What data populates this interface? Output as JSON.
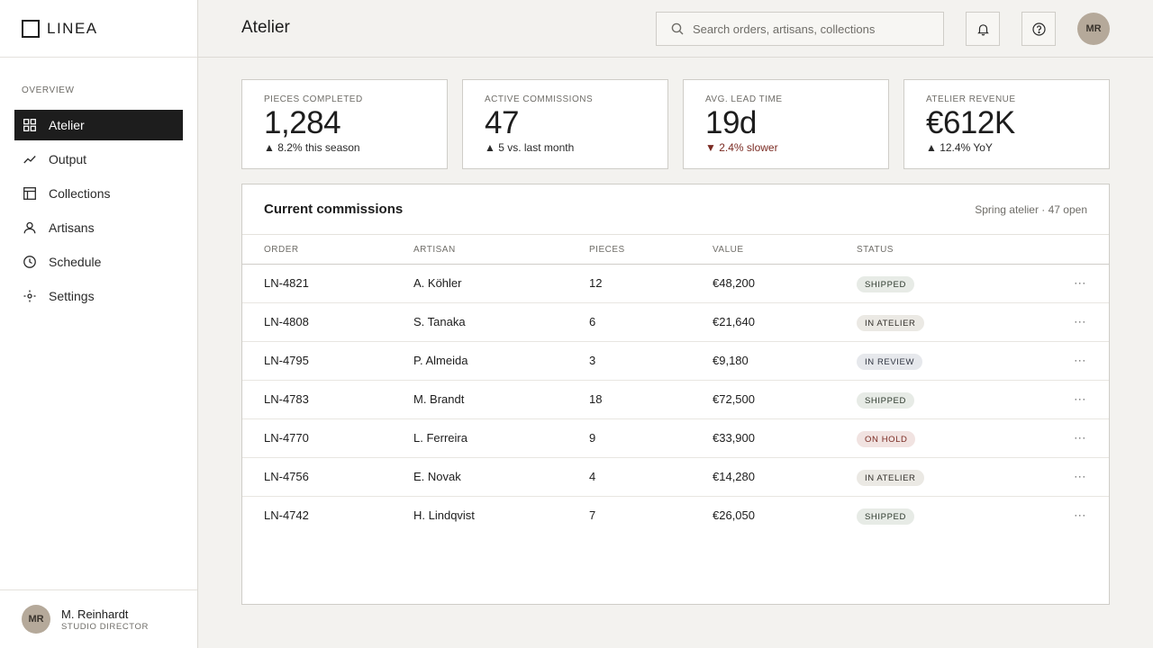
{
  "brand": {
    "name": "LINEA"
  },
  "sidebar": {
    "section": "OVERVIEW",
    "items": [
      {
        "label": "Atelier",
        "icon": "grid-icon",
        "active": true
      },
      {
        "label": "Output",
        "icon": "trend-icon"
      },
      {
        "label": "Collections",
        "icon": "layout-icon"
      },
      {
        "label": "Artisans",
        "icon": "user-icon"
      },
      {
        "label": "Schedule",
        "icon": "clock-icon"
      },
      {
        "label": "Settings",
        "icon": "gear-icon"
      }
    ],
    "user": {
      "initials": "MR",
      "name": "M. Reinhardt",
      "role": "STUDIO DIRECTOR"
    }
  },
  "header": {
    "title": "Atelier",
    "search_placeholder": "Search orders, artisans, collections",
    "avatar_initials": "MR"
  },
  "kpis": [
    {
      "label": "PIECES COMPLETED",
      "value": "1,284",
      "delta": "▲ 8.2% this season",
      "trend": "up"
    },
    {
      "label": "ACTIVE COMMISSIONS",
      "value": "47",
      "delta": "▲ 5 vs. last month",
      "trend": "up"
    },
    {
      "label": "AVG. LEAD TIME",
      "value": "19d",
      "delta": "▼ 2.4% slower",
      "trend": "down"
    },
    {
      "label": "ATELIER REVENUE",
      "value": "€612K",
      "delta": "▲ 12.4% YoY",
      "trend": "up"
    }
  ],
  "table": {
    "title": "Current commissions",
    "meta": "Spring atelier · 47 open",
    "columns": [
      "ORDER",
      "ARTISAN",
      "PIECES",
      "VALUE",
      "STATUS"
    ],
    "rows": [
      {
        "order": "LN-4821",
        "artisan": "A. Köhler",
        "pieces": "12",
        "value": "€48,200",
        "status": "SHIPPED",
        "kind": "shipped"
      },
      {
        "order": "LN-4808",
        "artisan": "S. Tanaka",
        "pieces": "6",
        "value": "€21,640",
        "status": "IN ATELIER",
        "kind": "atelier"
      },
      {
        "order": "LN-4795",
        "artisan": "P. Almeida",
        "pieces": "3",
        "value": "€9,180",
        "status": "IN REVIEW",
        "kind": "review"
      },
      {
        "order": "LN-4783",
        "artisan": "M. Brandt",
        "pieces": "18",
        "value": "€72,500",
        "status": "SHIPPED",
        "kind": "shipped"
      },
      {
        "order": "LN-4770",
        "artisan": "L. Ferreira",
        "pieces": "9",
        "value": "€33,900",
        "status": "ON HOLD",
        "kind": "hold"
      },
      {
        "order": "LN-4756",
        "artisan": "E. Novak",
        "pieces": "4",
        "value": "€14,280",
        "status": "IN ATELIER",
        "kind": "atelier"
      },
      {
        "order": "LN-4742",
        "artisan": "H. Lindqvist",
        "pieces": "7",
        "value": "€26,050",
        "status": "SHIPPED",
        "kind": "shipped"
      }
    ],
    "row_action": "···"
  }
}
